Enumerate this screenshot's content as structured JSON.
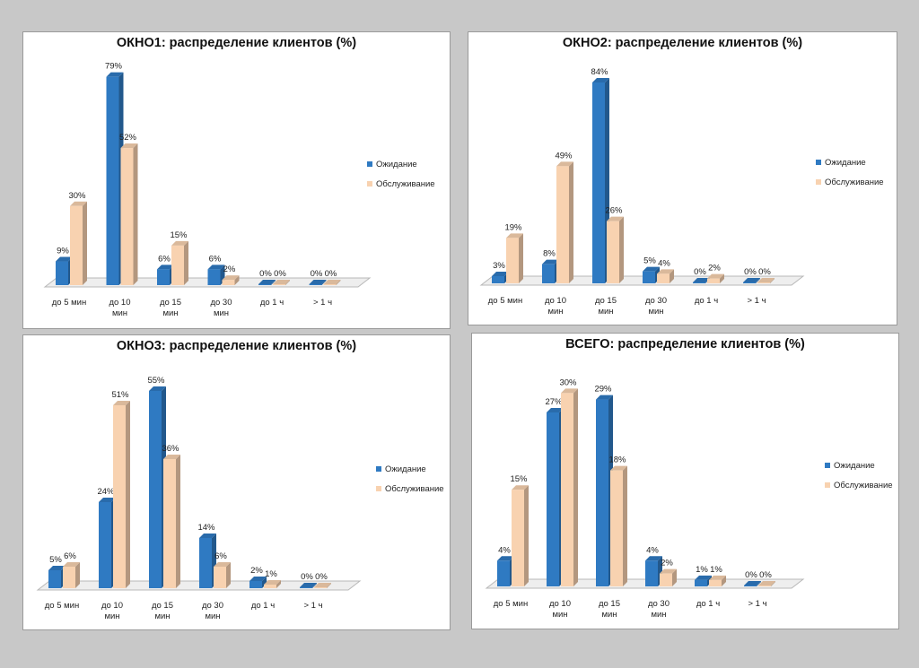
{
  "colors": {
    "wait": "#2f7ac2",
    "service": "#f8d2b0"
  },
  "legend": [
    "Ожидание",
    "Обслуживание"
  ],
  "chart_data": [
    {
      "type": "bar",
      "title": "ОКНО1: распределение клиентов (%)",
      "categories": [
        "до 5 мин",
        "до 10 мин",
        "до 15 мин",
        "до 30 мин",
        "до 1 ч",
        "> 1 ч"
      ],
      "series": [
        {
          "name": "Ожидание",
          "values": [
            9,
            79,
            6,
            6,
            0,
            0
          ]
        },
        {
          "name": "Обслуживание",
          "values": [
            30,
            52,
            15,
            2,
            0,
            0
          ]
        }
      ],
      "value_suffix": "%",
      "ylim": [
        0,
        85
      ],
      "legend_position": "right",
      "grid": false
    },
    {
      "type": "bar",
      "title": "ОКНО2: распределение клиентов (%)",
      "categories": [
        "до 5 мин",
        "до 10 мин",
        "до 15 мин",
        "до 30 мин",
        "до 1 ч",
        "> 1 ч"
      ],
      "series": [
        {
          "name": "Ожидание",
          "values": [
            3,
            8,
            84,
            5,
            0,
            0
          ]
        },
        {
          "name": "Обслуживание",
          "values": [
            19,
            49,
            26,
            4,
            2,
            0
          ]
        }
      ],
      "value_suffix": "%",
      "ylim": [
        0,
        90
      ],
      "legend_position": "right",
      "grid": false
    },
    {
      "type": "bar",
      "title": "ОКНО3: распределение клиентов (%)",
      "categories": [
        "до 5 мин",
        "до 10 мин",
        "до 15 мин",
        "до 30 мин",
        "до 1 ч",
        "> 1 ч"
      ],
      "series": [
        {
          "name": "Ожидание",
          "values": [
            5,
            24,
            55,
            14,
            2,
            0
          ]
        },
        {
          "name": "Обслуживание",
          "values": [
            6,
            51,
            36,
            6,
            1,
            0
          ]
        }
      ],
      "value_suffix": "%",
      "ylim": [
        0,
        60
      ],
      "legend_position": "right",
      "grid": false
    },
    {
      "type": "bar",
      "title": "ВСЕГО: распределение клиентов (%)",
      "categories": [
        "до 5 мин",
        "до 10 мин",
        "до 15 мин",
        "до 30 мин",
        "до 1 ч",
        "> 1 ч"
      ],
      "series": [
        {
          "name": "Ожидание",
          "values": [
            4,
            27,
            29,
            4,
            1,
            0
          ]
        },
        {
          "name": "Обслуживание",
          "values": [
            15,
            30,
            18,
            2,
            1,
            0
          ]
        }
      ],
      "value_suffix": "%",
      "ylim": [
        0,
        32
      ],
      "legend_position": "right",
      "grid": false
    }
  ]
}
